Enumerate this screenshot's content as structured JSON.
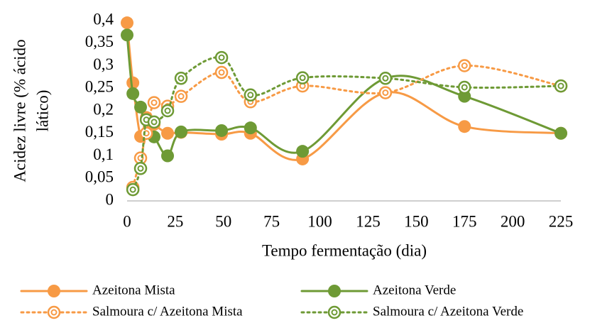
{
  "chart_data": {
    "type": "line",
    "x_label": "Tempo fermentação (dia)",
    "y_label": [
      "Acidez livre (% ácido",
      "lático)"
    ],
    "x": [
      0,
      3,
      7,
      10,
      14,
      21,
      28,
      49,
      64,
      91,
      134,
      175,
      225
    ],
    "series": [
      {
        "name": "Azeitona Mista",
        "color": "#f79a45",
        "style": "solid",
        "marker": "filled",
        "values": [
          0.395,
          0.262,
          0.143,
          0.185,
          0.17,
          0.15,
          0.152,
          0.148,
          0.15,
          0.093,
          0.24,
          0.165,
          0.15
        ]
      },
      {
        "name": "Azeitona Verde",
        "color": "#6e9a35",
        "style": "solid",
        "marker": "filled",
        "values": [
          0.368,
          0.238,
          0.208,
          0.15,
          0.142,
          0.1,
          0.153,
          0.156,
          0.162,
          0.11,
          0.272,
          0.232,
          0.15
        ]
      },
      {
        "name": "Salmoura c/ Azeitona Mista",
        "color": "#f79a45",
        "style": "dotted",
        "marker": "open",
        "values": [
          null,
          0.03,
          0.095,
          0.15,
          0.218,
          0.21,
          0.232,
          0.285,
          0.22,
          0.255,
          0.24,
          0.3,
          0.255
        ]
      },
      {
        "name": "Salmoura c/ Azeitona Verde",
        "color": "#6e9a35",
        "style": "dotted",
        "marker": "open",
        "values": [
          null,
          0.025,
          0.072,
          0.18,
          0.175,
          0.2,
          0.272,
          0.318,
          0.235,
          0.273,
          0.272,
          0.252,
          0.255
        ]
      }
    ],
    "xlim": [
      0,
      225
    ],
    "xticks": [
      0,
      25,
      50,
      75,
      100,
      125,
      150,
      175,
      200,
      225
    ],
    "ylim": [
      0,
      0.4
    ],
    "yticks": [
      0,
      {
        "value": 0.05,
        "label": "0,05"
      },
      {
        "value": 0.1,
        "label": "0,1"
      },
      {
        "value": 0.15,
        "label": "0,15"
      },
      {
        "value": 0.2,
        "label": "0,2"
      },
      {
        "value": 0.25,
        "label": "0,25"
      },
      {
        "value": 0.3,
        "label": "0,3"
      },
      {
        "value": 0.35,
        "label": "0,35"
      },
      {
        "value": 0.4,
        "label": "0,4"
      }
    ],
    "grid": false,
    "legend": "bottom"
  }
}
